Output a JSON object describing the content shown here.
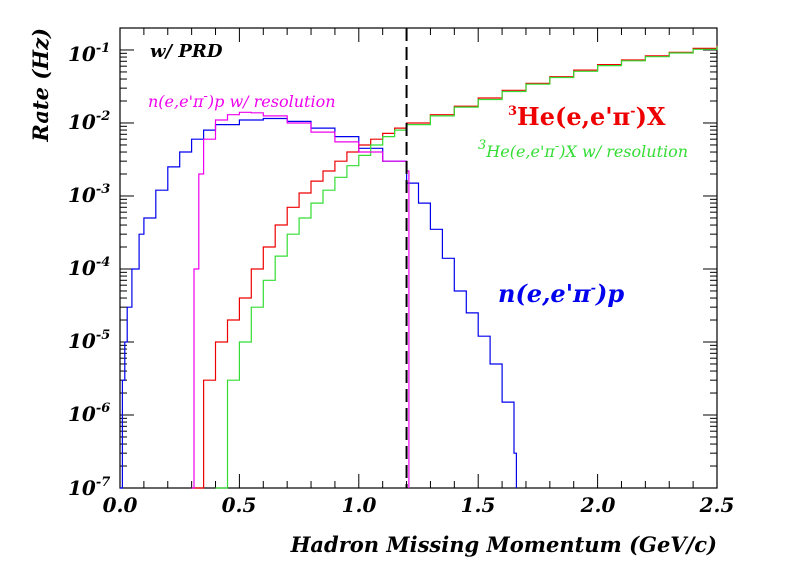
{
  "chart_data": {
    "type": "line",
    "note": "w/ PRD",
    "xlabel": "Hadron Missing Momentum (GeV/c)",
    "ylabel": "Rate (Hz)",
    "xlim": [
      0,
      2.5
    ],
    "ylim": [
      1e-07,
      0.2
    ],
    "yscale": "log",
    "x_ticks": [
      "0.0",
      "0.5",
      "1.0",
      "1.5",
      "2.0",
      "2.5"
    ],
    "y_ticks": [
      {
        "base": "10",
        "exp": "-7"
      },
      {
        "base": "10",
        "exp": "-6"
      },
      {
        "base": "10",
        "exp": "-5"
      },
      {
        "base": "10",
        "exp": "-4"
      },
      {
        "base": "10",
        "exp": "-3"
      },
      {
        "base": "10",
        "exp": "-2"
      },
      {
        "base": "10",
        "exp": "-1"
      }
    ],
    "cut_line": {
      "x": 1.2,
      "style": "dashed"
    },
    "series": [
      {
        "name": "n(e,e'π⁻)p",
        "color": "#0000ee",
        "x": [
          0.0,
          0.01,
          0.02,
          0.03,
          0.05,
          0.08,
          0.1,
          0.15,
          0.2,
          0.25,
          0.3,
          0.35,
          0.4,
          0.5,
          0.6,
          0.7,
          0.8,
          0.9,
          1.0,
          1.1,
          1.2,
          1.25,
          1.3,
          1.35,
          1.4,
          1.45,
          1.5,
          1.55,
          1.6,
          1.65,
          1.66
        ],
        "y": [
          1e-07,
          3e-06,
          1e-05,
          3e-05,
          0.0001,
          0.0003,
          0.0005,
          0.0012,
          0.0025,
          0.004,
          0.006,
          0.008,
          0.0095,
          0.011,
          0.0115,
          0.0105,
          0.0085,
          0.0065,
          0.0045,
          0.003,
          0.0015,
          0.0008,
          0.00035,
          0.00014,
          5e-05,
          2.5e-05,
          1.2e-05,
          5e-06,
          1.5e-06,
          3e-07,
          1e-07
        ]
      },
      {
        "name": "³He(e,e'π⁻)X",
        "color": "#ee0000",
        "x": [
          0.3,
          0.35,
          0.4,
          0.45,
          0.5,
          0.55,
          0.6,
          0.65,
          0.7,
          0.75,
          0.8,
          0.85,
          0.9,
          0.95,
          1.0,
          1.05,
          1.1,
          1.15,
          1.2,
          1.3,
          1.4,
          1.5,
          1.6,
          1.7,
          1.8,
          1.9,
          2.0,
          2.1,
          2.2,
          2.3,
          2.4,
          2.5
        ],
        "y": [
          1e-07,
          3e-06,
          1e-05,
          2e-05,
          4e-05,
          0.0001,
          0.0002,
          0.0004,
          0.0007,
          0.0011,
          0.0016,
          0.0022,
          0.003,
          0.004,
          0.005,
          0.006,
          0.0072,
          0.0085,
          0.01,
          0.013,
          0.017,
          0.022,
          0.028,
          0.035,
          0.043,
          0.053,
          0.063,
          0.073,
          0.083,
          0.093,
          0.105,
          0.115
        ]
      },
      {
        "name": "³He(e,e'π⁻)X w/ resolution",
        "color": "#33dd33",
        "x": [
          0.4,
          0.45,
          0.5,
          0.55,
          0.6,
          0.65,
          0.7,
          0.75,
          0.8,
          0.85,
          0.9,
          0.95,
          1.0,
          1.05,
          1.1,
          1.15,
          1.2,
          1.3,
          1.4,
          1.5,
          1.6,
          1.7,
          1.8,
          1.9,
          2.0,
          2.1,
          2.2,
          2.3,
          2.4,
          2.5
        ],
        "y": [
          1e-07,
          3e-06,
          1e-05,
          3e-05,
          7e-05,
          0.00015,
          0.0003,
          0.0005,
          0.0008,
          0.0012,
          0.0018,
          0.0026,
          0.0036,
          0.005,
          0.0065,
          0.008,
          0.0095,
          0.0125,
          0.0165,
          0.021,
          0.027,
          0.034,
          0.042,
          0.051,
          0.061,
          0.071,
          0.081,
          0.091,
          0.102,
          0.112
        ]
      },
      {
        "name": "n(e,e'π⁻)p w/ resolution",
        "color": "#ee00ee",
        "x": [
          0.3,
          0.31,
          0.33,
          0.35,
          0.4,
          0.45,
          0.5,
          0.55,
          0.6,
          0.7,
          0.8,
          0.9,
          1.0,
          1.1,
          1.2,
          1.21
        ],
        "y": [
          1e-07,
          0.0001,
          0.002,
          0.006,
          0.011,
          0.013,
          0.014,
          0.0138,
          0.0125,
          0.01,
          0.0075,
          0.0055,
          0.004,
          0.003,
          0.0022,
          1e-07
        ]
      }
    ],
    "legend_labels": {
      "blue": {
        "pre": "n(e,e'",
        "pi": "π",
        "sup": "-",
        "post": ")p"
      },
      "red": {
        "iso": "3",
        "pre": "He(e,e'",
        "pi": "π",
        "sup": "-",
        "post": ")X"
      },
      "green": {
        "iso": "3",
        "pre": "He(e,e'",
        "pi": "π",
        "sup": "-",
        "post": ")X w/ resolution"
      },
      "magenta": {
        "pre": "n(e,e'",
        "pi": "π",
        "sup": "-",
        "post": ")p w/ resolution"
      }
    }
  }
}
